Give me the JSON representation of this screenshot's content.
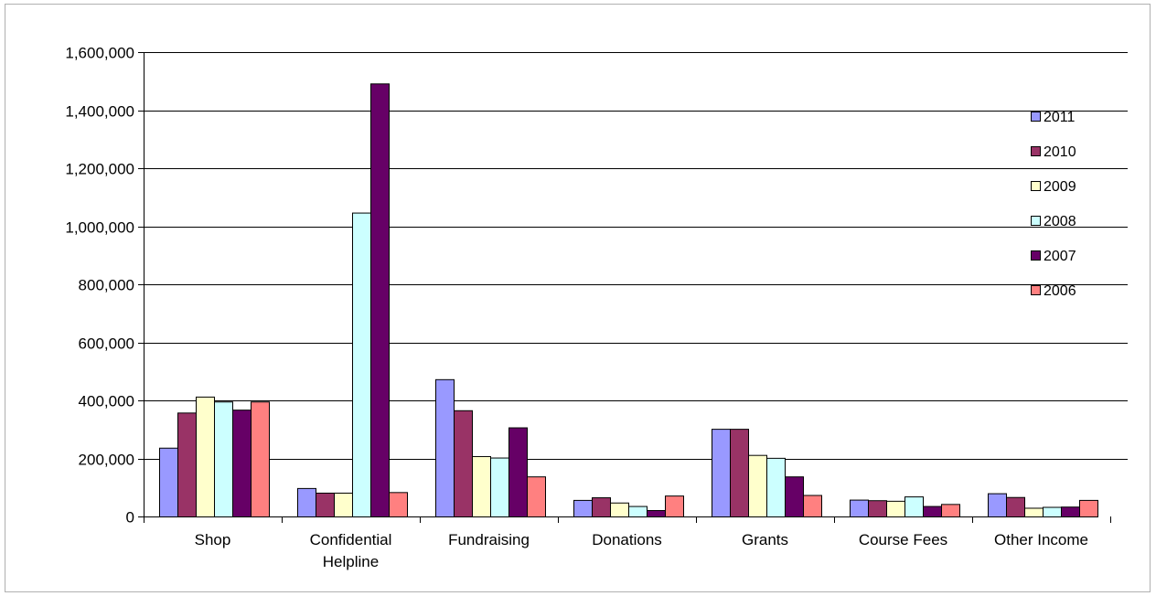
{
  "chart_data": {
    "type": "bar",
    "title": "",
    "xlabel": "",
    "ylabel": "",
    "ylim": [
      0,
      1600000
    ],
    "yticks": [
      0,
      200000,
      400000,
      600000,
      800000,
      1000000,
      1200000,
      1400000,
      1600000
    ],
    "ytick_labels": [
      "0",
      "200,000",
      "400,000",
      "600,000",
      "800,000",
      "1,000,000",
      "1,200,000",
      "1,400,000",
      "1,600,000"
    ],
    "grid": true,
    "legend_position": "right",
    "categories": [
      [
        "Shop"
      ],
      [
        "Confidential",
        "Helpline"
      ],
      [
        "Fundraising"
      ],
      [
        "Donations"
      ],
      [
        "Grants"
      ],
      [
        "Course Fees"
      ],
      [
        "Other Income"
      ]
    ],
    "series": [
      {
        "name": "2011",
        "color": "#9999FF",
        "values": [
          237000,
          98000,
          473000,
          57000,
          302000,
          58000,
          80000
        ]
      },
      {
        "name": "2010",
        "color": "#993366",
        "values": [
          358000,
          82000,
          366000,
          66000,
          302000,
          56000,
          67000
        ]
      },
      {
        "name": "2009",
        "color": "#FFFFCC",
        "values": [
          413000,
          82000,
          208000,
          48000,
          212000,
          54000,
          30000
        ]
      },
      {
        "name": "2008",
        "color": "#CCFFFF",
        "values": [
          396000,
          1047000,
          203000,
          36000,
          202000,
          69000,
          33000
        ]
      },
      {
        "name": "2007",
        "color": "#660066",
        "values": [
          368000,
          1492000,
          307000,
          22000,
          138000,
          36000,
          34000
        ]
      },
      {
        "name": "2006",
        "color": "#FF8080",
        "values": [
          396000,
          84000,
          138000,
          72000,
          74000,
          43000,
          57000
        ]
      }
    ]
  }
}
